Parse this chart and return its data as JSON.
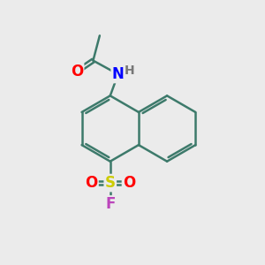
{
  "bg_color": "#ebebeb",
  "bond_color": "#3d7a6b",
  "bond_width": 1.8,
  "atom_colors": {
    "O": "#ff0000",
    "N": "#0000ff",
    "S": "#cccc00",
    "F": "#bb44bb",
    "H": "#777777"
  },
  "font_size": 12,
  "fig_size": [
    3.0,
    3.0
  ],
  "dpi": 100
}
